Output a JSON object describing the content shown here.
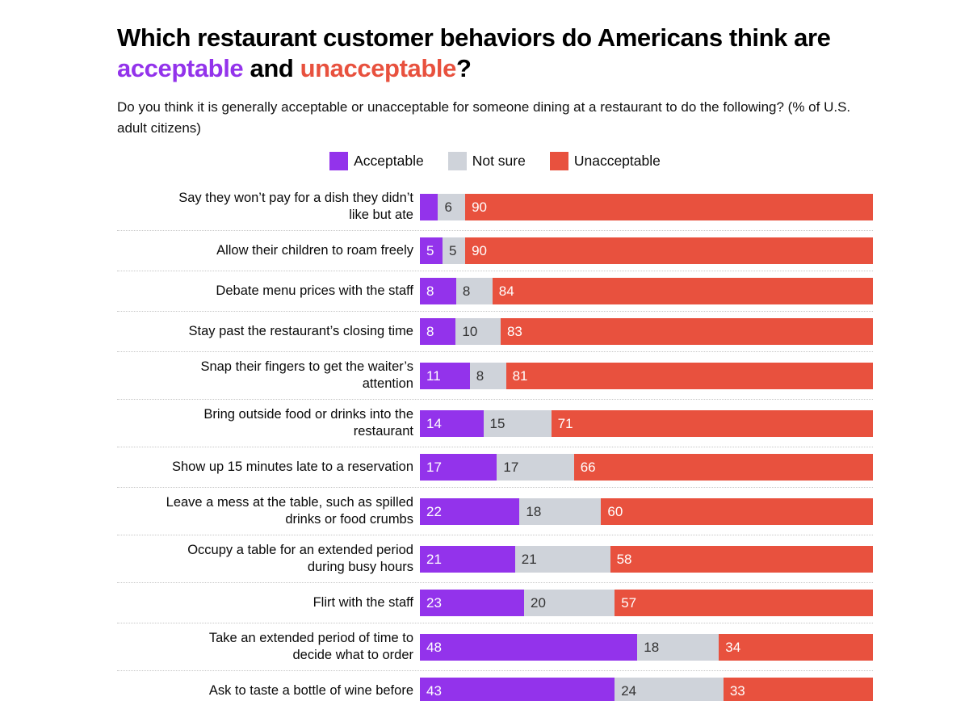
{
  "header": {
    "title_parts": [
      {
        "text": "Which restaurant customer behaviors do Americans think are ",
        "color": "#000000"
      },
      {
        "text": "acceptable",
        "color": "#9333EB"
      },
      {
        "text": " and ",
        "color": "#000000"
      },
      {
        "text": "unacceptable",
        "color": "#E8513E"
      },
      {
        "text": "?",
        "color": "#000000"
      }
    ],
    "subtitle": "Do you think it is generally acceptable or unacceptable for someone dining at a restaurant to do the following? (% of U.S. adult citizens)"
  },
  "legend": [
    {
      "label": "Acceptable",
      "color": "#9333EB"
    },
    {
      "label": "Not sure",
      "color": "#CFD3DA"
    },
    {
      "label": "Unacceptable",
      "color": "#E8513E"
    }
  ],
  "chart_data": {
    "type": "bar",
    "orientation": "horizontal-stacked",
    "title": "Which restaurant customer behaviors do Americans think are acceptable and unacceptable?",
    "unit": "% of U.S. adult citizens",
    "xlim": [
      0,
      100
    ],
    "value_label_min_to_show": 5,
    "categories": [
      "Say they won’t pay for a dish they didn’t\nlike but ate",
      "Allow their children to roam freely",
      "Debate menu prices with the staff",
      "Stay past the restaurant’s closing time",
      "Snap their fingers to get the waiter’s\nattention",
      "Bring outside food or drinks into the\nrestaurant",
      "Show up 15 minutes late to a reservation",
      "Leave a mess at the table, such as spilled\ndrinks or food crumbs",
      "Occupy a table for an extended period\nduring busy hours",
      "Flirt with the staff",
      "Take an extended period of time to\ndecide what to order",
      "Ask to taste a bottle of wine before"
    ],
    "series": [
      {
        "name": "Acceptable",
        "color": "#9333EB",
        "text_color": "#ffffff",
        "values": [
          4,
          5,
          8,
          8,
          11,
          14,
          17,
          22,
          21,
          23,
          48,
          43
        ]
      },
      {
        "name": "Not sure",
        "color": "#CFD3DA",
        "text_color": "#333333",
        "values": [
          6,
          5,
          8,
          10,
          8,
          15,
          17,
          18,
          21,
          20,
          18,
          24
        ]
      },
      {
        "name": "Unacceptable",
        "color": "#E8513E",
        "text_color": "#ffffff",
        "values": [
          90,
          90,
          84,
          83,
          81,
          71,
          66,
          60,
          58,
          57,
          34,
          33
        ]
      }
    ]
  }
}
